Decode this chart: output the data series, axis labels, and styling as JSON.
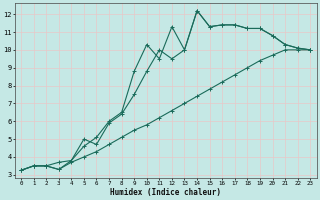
{
  "xlabel": "Humidex (Indice chaleur)",
  "bg_color": "#c5e8e5",
  "grid_color": "#e8c8c8",
  "line_color": "#1a6b5a",
  "xlim": [
    -0.5,
    23.5
  ],
  "ylim": [
    2.8,
    12.6
  ],
  "xticks": [
    0,
    1,
    2,
    3,
    4,
    5,
    6,
    7,
    8,
    9,
    10,
    11,
    12,
    13,
    14,
    15,
    16,
    17,
    18,
    19,
    20,
    21,
    22,
    23
  ],
  "yticks": [
    3,
    4,
    5,
    6,
    7,
    8,
    9,
    10,
    11,
    12
  ],
  "series1_x": [
    0,
    1,
    2,
    3,
    4,
    5,
    6,
    7,
    8,
    9,
    10,
    11,
    12,
    13,
    14,
    15,
    16,
    17,
    18,
    19,
    20,
    21,
    22,
    23
  ],
  "series1_y": [
    3.25,
    3.5,
    3.5,
    3.7,
    3.8,
    5.0,
    4.7,
    5.9,
    6.4,
    7.5,
    8.8,
    10.0,
    9.5,
    10.0,
    12.2,
    11.3,
    11.4,
    11.4,
    11.2,
    11.2,
    10.8,
    10.3,
    10.1,
    10.0
  ],
  "series2_x": [
    0,
    1,
    2,
    3,
    4,
    5,
    6,
    7,
    8,
    9,
    10,
    11,
    12,
    13,
    14,
    15,
    16,
    17,
    18,
    19,
    20,
    21,
    22,
    23
  ],
  "series2_y": [
    3.25,
    3.5,
    3.5,
    3.3,
    3.8,
    4.6,
    5.1,
    6.0,
    6.5,
    8.8,
    10.3,
    9.5,
    11.3,
    10.0,
    12.2,
    11.3,
    11.4,
    11.4,
    11.2,
    11.2,
    10.8,
    10.3,
    10.1,
    10.0
  ],
  "series3_x": [
    0,
    1,
    2,
    3,
    4,
    5,
    6,
    7,
    8,
    9,
    10,
    11,
    12,
    13,
    14,
    15,
    16,
    17,
    18,
    19,
    20,
    21,
    22,
    23
  ],
  "series3_y": [
    3.25,
    3.5,
    3.5,
    3.3,
    3.7,
    4.0,
    4.3,
    4.7,
    5.1,
    5.5,
    5.8,
    6.2,
    6.6,
    7.0,
    7.4,
    7.8,
    8.2,
    8.6,
    9.0,
    9.4,
    9.7,
    10.0,
    10.0,
    10.0
  ]
}
